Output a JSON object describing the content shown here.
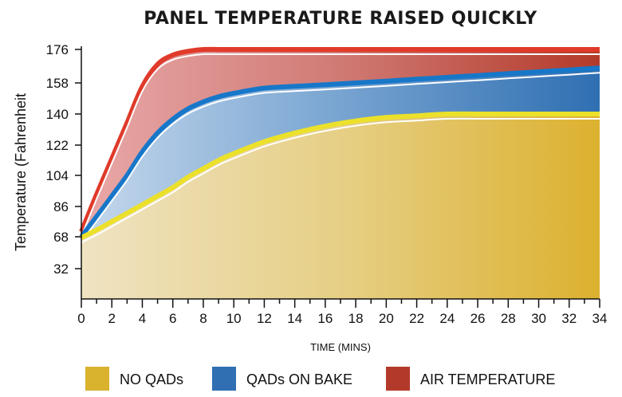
{
  "chart_data": {
    "type": "area",
    "title": "PANEL TEMPERATURE RAISED QUICKLY",
    "xlabel": "TIME (MINS)",
    "ylabel": "Temperature (Fahrenheit",
    "x_ticks": [
      0,
      2,
      4,
      6,
      8,
      10,
      12,
      14,
      16,
      18,
      20,
      22,
      24,
      26,
      28,
      30,
      32,
      34
    ],
    "y_ticks": [
      32,
      68,
      86,
      104,
      122,
      140,
      158,
      176
    ],
    "xlim": [
      0,
      34
    ],
    "ylim": [
      0,
      176
    ],
    "grid": false,
    "legend_position": "bottom",
    "x": [
      0,
      1,
      2,
      3,
      4,
      5,
      6,
      7,
      8,
      9,
      10,
      12,
      14,
      16,
      18,
      20,
      22,
      24,
      26,
      28,
      30,
      32,
      34
    ],
    "series": [
      {
        "name": "NO QADs",
        "color": "#d9b22e",
        "line_color": "#ece12a",
        "values": [
          67,
          72,
          77,
          82,
          87,
          92,
          97,
          103,
          108,
          113,
          117,
          124,
          129,
          133,
          136,
          138,
          139,
          140,
          140,
          140,
          140,
          140,
          140
        ]
      },
      {
        "name": "QADs ON BAKE",
        "color": "#2f6fb2",
        "line_color": "#1777c9",
        "values": [
          68,
          80,
          92,
          104,
          118,
          129,
          137,
          143,
          147,
          150,
          152,
          155,
          156,
          157,
          158,
          159,
          160,
          161,
          162,
          163,
          164,
          165,
          166
        ]
      },
      {
        "name": "AIR TEMPERATURE",
        "color": "#b33a2a",
        "line_color": "#e03a2a",
        "values": [
          71,
          93,
          114,
          135,
          156,
          168,
          173,
          175,
          176,
          176,
          176,
          176,
          176,
          176,
          176,
          176,
          176,
          176,
          176,
          176,
          176,
          176,
          176
        ]
      }
    ]
  }
}
